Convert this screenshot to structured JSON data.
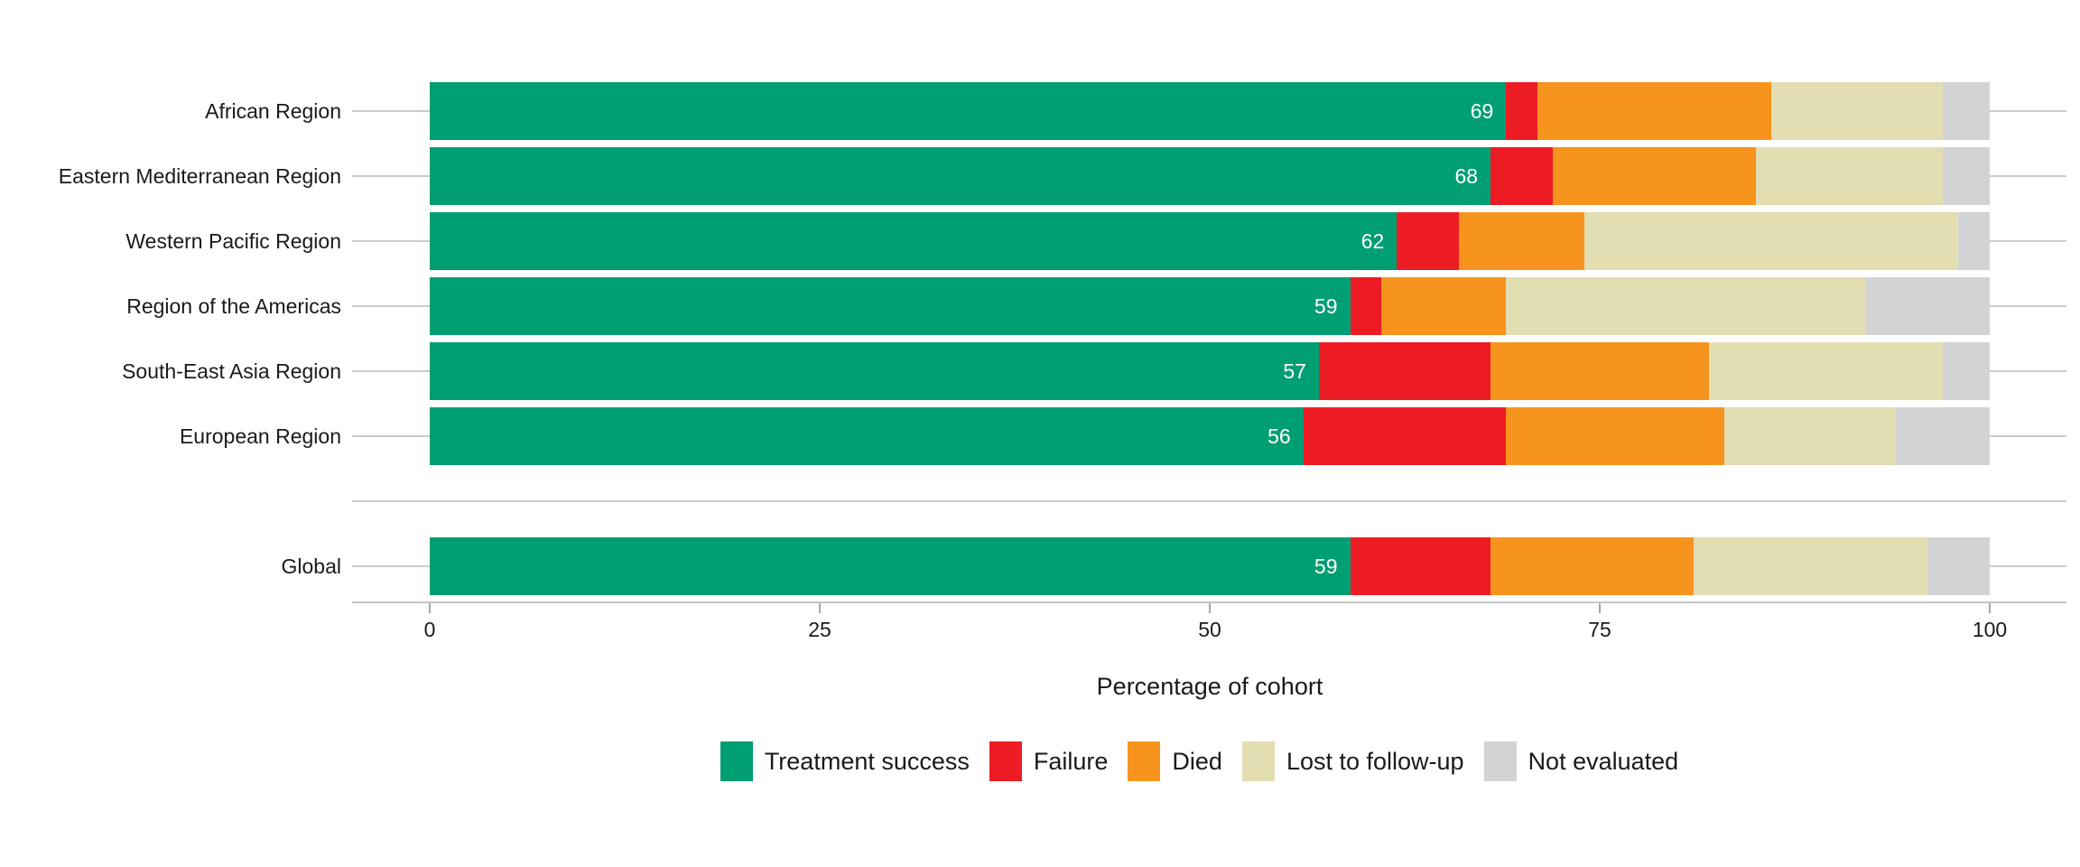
{
  "chart_data": {
    "type": "bar",
    "stacked": true,
    "orientation": "horizontal",
    "title": "",
    "xlabel": "Percentage of cohort",
    "ylabel": "",
    "xlim": [
      0,
      100
    ],
    "x_ticks": [
      "0",
      "25",
      "50",
      "75",
      "100"
    ],
    "x_tick_values": [
      0,
      25,
      50,
      75,
      100
    ],
    "grid": "horizontal gridlines at each category row, no vertical gridlines",
    "legend_position": "bottom-center",
    "categories": [
      "African Region",
      "Eastern Mediterranean Region",
      "Western Pacific Region",
      "Region of the Americas",
      "South-East Asia Region",
      "European Region",
      "Global"
    ],
    "separator_gap_after_index": 5,
    "series": [
      {
        "name": "Treatment success",
        "color": "#009E73",
        "values": [
          69,
          68,
          62,
          59,
          57,
          56,
          59
        ]
      },
      {
        "name": "Failure",
        "color": "#ED1C24",
        "values": [
          2,
          4,
          4,
          2,
          11,
          13,
          9
        ]
      },
      {
        "name": "Died",
        "color": "#F7941E",
        "values": [
          15,
          13,
          8,
          8,
          14,
          14,
          13
        ]
      },
      {
        "name": "Lost to follow-up",
        "color": "#E3DDB2",
        "values": [
          11,
          12,
          24,
          23,
          15,
          11,
          15
        ]
      },
      {
        "name": "Not evaluated",
        "color": "#D2D3D4",
        "values": [
          3,
          3,
          2,
          8,
          3,
          6,
          4
        ]
      }
    ],
    "bar_value_labels": [
      "69",
      "68",
      "62",
      "59",
      "57",
      "56",
      "59"
    ],
    "bar_value_label_color": "#ffffff",
    "legend_items": [
      {
        "label": "Treatment success",
        "color": "#009E73"
      },
      {
        "label": "Failure",
        "color": "#ED1C24"
      },
      {
        "label": "Died",
        "color": "#F7941E"
      },
      {
        "label": "Lost to follow-up",
        "color": "#E3DDB2"
      },
      {
        "label": "Not evaluated",
        "color": "#D2D3D4"
      }
    ]
  }
}
